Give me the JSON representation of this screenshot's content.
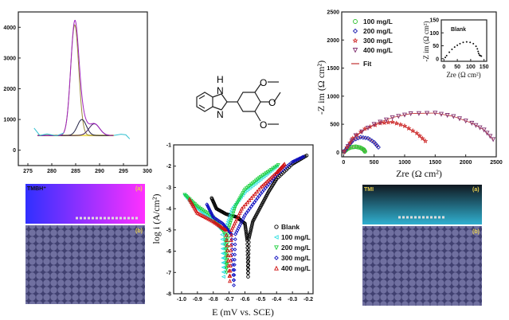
{
  "chart_data": [
    {
      "type": "line",
      "panel": "xps",
      "xlim": [
        273,
        300
      ],
      "ylim": [
        -500,
        4500
      ],
      "xticks": [
        "275",
        "280",
        "285",
        "290",
        "295",
        "300"
      ],
      "yticks": [
        "0",
        "1000",
        "2000",
        "3000",
        "4000"
      ],
      "baseline": 480,
      "peaks": [
        {
          "center": 284.8,
          "height": 3600,
          "fwhm": 2.0,
          "color": "#9a8a3a"
        },
        {
          "center": 286.3,
          "height": 520,
          "fwhm": 2.2,
          "color": "#222244"
        },
        {
          "center": 288.9,
          "height": 380,
          "fwhm": 2.6,
          "color": "#402060"
        }
      ],
      "envelope_color": "#a020c0",
      "raw_color": "#30c0d0",
      "background_color": "#f0e060"
    },
    {
      "type": "scatter",
      "panel": "tafel",
      "xlabel": "E (mV vs. SCE)",
      "ylabel": "log i (A/cm²)",
      "xlim": [
        -1.05,
        -0.17
      ],
      "ylim": [
        -8,
        -1
      ],
      "xticks": [
        "-1.0",
        "-0.9",
        "-0.8",
        "-0.7",
        "-0.6",
        "-0.5",
        "-0.4",
        "-0.3",
        "-0.2"
      ],
      "yticks": [
        "-1",
        "-2",
        "-3",
        "-4",
        "-5",
        "-6",
        "-7",
        "-8"
      ],
      "series": [
        {
          "name": "Blank",
          "color": "#000000",
          "marker": "circle",
          "points": [
            [
              -0.81,
              -3.5
            ],
            [
              -0.78,
              -4.0
            ],
            [
              -0.72,
              -4.25
            ],
            [
              -0.65,
              -4.4
            ],
            [
              -0.6,
              -4.7
            ],
            [
              -0.585,
              -5.5
            ],
            [
              -0.58,
              -7.2
            ],
            [
              -0.575,
              -5.4
            ],
            [
              -0.55,
              -4.6
            ],
            [
              -0.5,
              -3.9
            ],
            [
              -0.45,
              -3.2
            ],
            [
              -0.4,
              -2.6
            ],
            [
              -0.3,
              -1.9
            ],
            [
              -0.21,
              -1.5
            ]
          ]
        },
        {
          "name": "100 mg/L",
          "color": "#30e0e0",
          "marker": "triangle-left",
          "points": [
            [
              -0.98,
              -3.35
            ],
            [
              -0.93,
              -3.8
            ],
            [
              -0.85,
              -4.3
            ],
            [
              -0.78,
              -4.7
            ],
            [
              -0.745,
              -5.0
            ],
            [
              -0.735,
              -7.2
            ],
            [
              -0.725,
              -5.0
            ],
            [
              -0.68,
              -4.0
            ],
            [
              -0.6,
              -3.2
            ],
            [
              -0.5,
              -2.6
            ],
            [
              -0.4,
              -2.0
            ]
          ]
        },
        {
          "name": "200 mg/L",
          "color": "#20d040",
          "marker": "triangle-down",
          "points": [
            [
              -0.98,
              -3.35
            ],
            [
              -0.9,
              -3.9
            ],
            [
              -0.8,
              -4.4
            ],
            [
              -0.725,
              -5.2
            ],
            [
              -0.715,
              -7.0
            ],
            [
              -0.705,
              -5.0
            ],
            [
              -0.66,
              -3.9
            ],
            [
              -0.6,
              -3.1
            ],
            [
              -0.5,
              -2.5
            ],
            [
              -0.39,
              -1.95
            ]
          ]
        },
        {
          "name": "300 mg/L",
          "color": "#1010c0",
          "marker": "diamond",
          "points": [
            [
              -0.84,
              -3.8
            ],
            [
              -0.8,
              -4.4
            ],
            [
              -0.74,
              -4.7
            ],
            [
              -0.685,
              -5.2
            ],
            [
              -0.67,
              -7.6
            ],
            [
              -0.66,
              -5.2
            ],
            [
              -0.6,
              -4.3
            ],
            [
              -0.5,
              -3.3
            ],
            [
              -0.4,
              -2.4
            ],
            [
              -0.3,
              -1.8
            ],
            [
              -0.23,
              -1.55
            ]
          ]
        },
        {
          "name": "400 mg/L",
          "color": "#d01010",
          "marker": "triangle-up",
          "points": [
            [
              -0.95,
              -3.55
            ],
            [
              -0.9,
              -4.2
            ],
            [
              -0.8,
              -4.6
            ],
            [
              -0.72,
              -5.0
            ],
            [
              -0.695,
              -7.4
            ],
            [
              -0.685,
              -5.0
            ],
            [
              -0.62,
              -4.0
            ],
            [
              -0.5,
              -3.0
            ],
            [
              -0.4,
              -2.3
            ],
            [
              -0.35,
              -1.9
            ]
          ]
        }
      ]
    },
    {
      "type": "scatter",
      "panel": "nyquist",
      "xlabel": "Zre (Ω cm²)",
      "ylabel": "-Z im (Ω cm²)",
      "xlim": [
        -30,
        2500
      ],
      "ylim": [
        -80,
        2500
      ],
      "xticks": [
        "0",
        "500",
        "1000",
        "1500",
        "2000",
        "2500"
      ],
      "yticks": [
        "0",
        "500",
        "1000",
        "1500",
        "2000",
        "2500"
      ],
      "fit_label": "Fit",
      "fit_color": "#c03030",
      "series": [
        {
          "name": "100 mg/L",
          "color": "#30c030",
          "marker": "circle",
          "points": [
            [
              10,
              10
            ],
            [
              60,
              60
            ],
            [
              120,
              90
            ],
            [
              200,
              100
            ],
            [
              270,
              85
            ],
            [
              330,
              50
            ],
            [
              350,
              15
            ]
          ]
        },
        {
          "name": "200 mg/L",
          "color": "#2020b0",
          "marker": "diamond",
          "points": [
            [
              10,
              10
            ],
            [
              80,
              120
            ],
            [
              160,
              220
            ],
            [
              280,
              270
            ],
            [
              400,
              250
            ],
            [
              500,
              180
            ],
            [
              570,
              90
            ]
          ]
        },
        {
          "name": "300 mg/L",
          "color": "#d03030",
          "marker": "star",
          "points": [
            [
              10,
              10
            ],
            [
              150,
              250
            ],
            [
              350,
              420
            ],
            [
              600,
              520
            ],
            [
              800,
              540
            ],
            [
              1000,
              470
            ],
            [
              1200,
              340
            ],
            [
              1340,
              200
            ]
          ]
        },
        {
          "name": "400 mg/L",
          "color": "#803070",
          "marker": "triangle-down",
          "points": [
            [
              10,
              10
            ],
            [
              200,
              300
            ],
            [
              500,
              500
            ],
            [
              800,
              620
            ],
            [
              1100,
              690
            ],
            [
              1500,
              700
            ],
            [
              1800,
              640
            ],
            [
              2100,
              520
            ],
            [
              2300,
              400
            ],
            [
              2450,
              230
            ]
          ]
        }
      ],
      "inset": {
        "title": "Blank",
        "xlabel": "Zre (Ω cm²)",
        "ylabel": "-Z im (Ω cm²)",
        "xlim": [
          -10,
          160
        ],
        "ylim": [
          -10,
          150
        ],
        "xticks": [
          "0",
          "50",
          "100",
          "150"
        ],
        "yticks": [
          "0",
          "50",
          "100",
          "150"
        ],
        "points": [
          [
            5,
            5
          ],
          [
            10,
            12
          ],
          [
            20,
            25
          ],
          [
            30,
            36
          ],
          [
            40,
            45
          ],
          [
            50,
            52
          ],
          [
            60,
            58
          ],
          [
            72,
            63
          ],
          [
            85,
            65
          ],
          [
            98,
            63
          ],
          [
            110,
            58
          ],
          [
            120,
            48
          ],
          [
            125,
            38
          ],
          [
            128,
            28
          ],
          [
            130,
            20
          ],
          [
            133,
            14
          ],
          [
            136,
            12
          ],
          [
            140,
            10
          ]
        ]
      }
    }
  ],
  "molecule": {
    "atoms": [
      "H",
      "N",
      "N",
      "O",
      "O",
      "O"
    ]
  },
  "simulations": [
    {
      "label": "TMBH⁺",
      "top_tag": "(a)",
      "bottom_tag": "(b)"
    },
    {
      "label": "TMI",
      "top_tag": "(a)",
      "bottom_tag": "(b)"
    }
  ]
}
